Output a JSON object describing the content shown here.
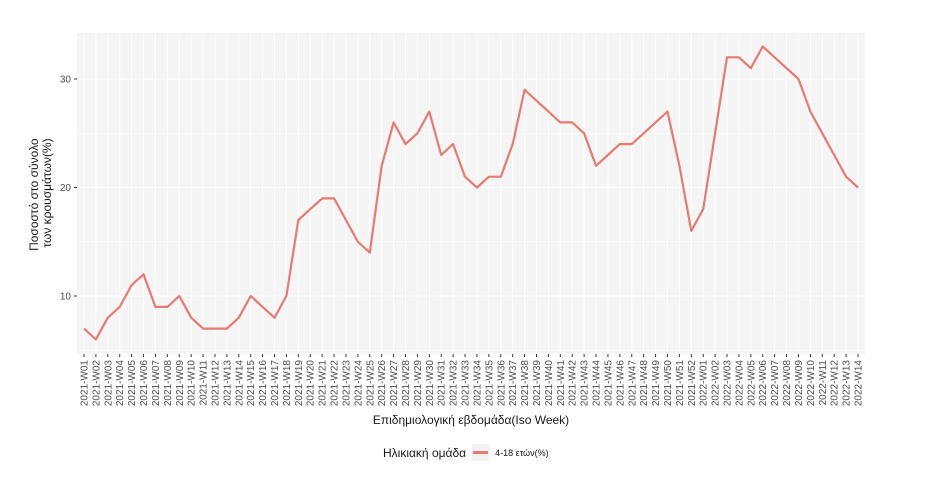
{
  "chart_data": {
    "type": "line",
    "title": "",
    "xlabel": "Επιδημιολογική εβδομάδα(Iso Week)",
    "ylabel": "Ποσοστό στο σύνολο των κρουσμάτων(%)",
    "ylabel_lines": [
      "Ποσοστό στο σύνολο",
      "των κρουσμάτων(%)"
    ],
    "yticks": [
      10,
      20,
      30
    ],
    "ylim": [
      4.9,
      34.2
    ],
    "grid": true,
    "legend_position": "bottom",
    "legend_title": "Ηλικιακή ομάδα",
    "categories": [
      "2021-W01",
      "2021-W02",
      "2021-W03",
      "2021-W04",
      "2021-W05",
      "2021-W06",
      "2021-W07",
      "2021-W08",
      "2021-W09",
      "2021-W10",
      "2021-W11",
      "2021-W12",
      "2021-W13",
      "2021-W14",
      "2021-W15",
      "2021-W16",
      "2021-W17",
      "2021-W18",
      "2021-W19",
      "2021-W20",
      "2021-W21",
      "2021-W22",
      "2021-W23",
      "2021-W24",
      "2021-W25",
      "2021-W26",
      "2021-W27",
      "2021-W28",
      "2021-W29",
      "2021-W30",
      "2021-W31",
      "2021-W32",
      "2021-W33",
      "2021-W34",
      "2021-W35",
      "2021-W36",
      "2021-W37",
      "2021-W38",
      "2021-W39",
      "2021-W40",
      "2021-W41",
      "2021-W42",
      "2021-W43",
      "2021-W44",
      "2021-W45",
      "2021-W46",
      "2021-W47",
      "2021-W48",
      "2021-W49",
      "2021-W50",
      "2021-W51",
      "2021-W52",
      "2022-W01",
      "2022-W02",
      "2022-W03",
      "2022-W04",
      "2022-W05",
      "2022-W06",
      "2022-W07",
      "2022-W08",
      "2022-W09",
      "2022-W10",
      "2022-W11",
      "2022-W12",
      "2022-W13",
      "2022-W14"
    ],
    "series": [
      {
        "name": "4-18 ετών(%)",
        "color": "#e87a72",
        "values": [
          7,
          6,
          8,
          9,
          11,
          12,
          9,
          9,
          10,
          8,
          7,
          7,
          7,
          8,
          10,
          9,
          8,
          10,
          17,
          18,
          19,
          19,
          17,
          15,
          14,
          22,
          26,
          24,
          25,
          27,
          23,
          24,
          21,
          20,
          21,
          21,
          24,
          29,
          28,
          27,
          26,
          26,
          25,
          22,
          23,
          24,
          24,
          25,
          26,
          27,
          22,
          16,
          18,
          25,
          32,
          32,
          31,
          33,
          32,
          31,
          30,
          27,
          25,
          23,
          21,
          20
        ]
      }
    ]
  },
  "legend": {
    "title": "Ηλικιακή ομάδα",
    "items": [
      {
        "label": "4-18 ετών(%)"
      }
    ]
  }
}
